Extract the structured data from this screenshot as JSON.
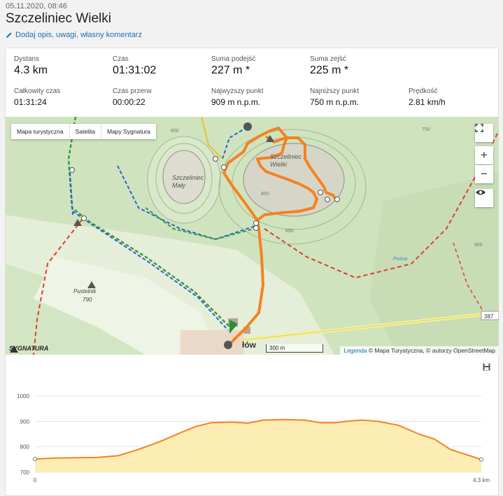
{
  "header": {
    "date": "05.11.2020, 08:46",
    "title": "Szczeliniec Wielki",
    "edit_link": "Dodaj opis, uwagi, własny komentarz"
  },
  "stats": [
    {
      "label": "Dystans",
      "value": "4.3 km",
      "size": "big"
    },
    {
      "label": "Czas",
      "value": "01:31:02",
      "size": "big"
    },
    {
      "label": "Suma podejść",
      "value": "227 m *",
      "size": "big"
    },
    {
      "label": "Suma zejść",
      "value": "225 m *",
      "size": "big"
    },
    {
      "label": "Całkowity czas",
      "value": "01:31:24",
      "size": "small"
    },
    {
      "label": "Czas przerw",
      "value": "00:00:22",
      "size": "small"
    },
    {
      "label": "Najwyższy punkt",
      "value": "909 m n.p.m.",
      "size": "small"
    },
    {
      "label": "Najniższy punkt",
      "value": "750 m n.p.m.",
      "size": "small"
    },
    {
      "label": "Prędkość",
      "value": "2.81 km/h",
      "size": "small"
    }
  ],
  "map": {
    "tabs": [
      "Mapa turystyczna",
      "Satelita",
      "Mapy Sygnatura"
    ],
    "active_tab": "Mapa turystyczna",
    "labels": {
      "szczeliniec_maly": "Szczeliniec\nMały",
      "szczeliniec_wielki": "Szczeliniec\nWielki",
      "pustelnik": "Pustelnik",
      "pustelnik_alt": "790",
      "contour_850a": "850",
      "contour_850b": "850",
      "contour_850c": "850",
      "contour_750": "750",
      "contour_800": "800",
      "village": "łów",
      "road_number": "387",
      "brook": "Pośna"
    },
    "scale_label": "300 m",
    "attribution_link": "Legenda",
    "attribution_text": "© Mapa Turystyczna, © autorzy OpenStreetMap",
    "brand": "SYGNATURA",
    "zoom_in": "+",
    "zoom_out": "−",
    "colors": {
      "track": "#f58220",
      "red_trail": "#d9412b",
      "green_trail": "#3a9a3a",
      "blue_trail": "#2a63c9",
      "yellow_trail": "#e7c331"
    }
  },
  "elevation": {
    "y_ticks": [
      "1000",
      "900",
      "800",
      "700"
    ],
    "x_ticks": [
      "0",
      "4.3 km"
    ],
    "ylim": [
      700,
      1000
    ],
    "xlim": [
      0,
      4.3
    ],
    "profile": [
      [
        0,
        752
      ],
      [
        0.2,
        756
      ],
      [
        0.4,
        757
      ],
      [
        0.6,
        758
      ],
      [
        0.8,
        765
      ],
      [
        1.0,
        790
      ],
      [
        1.2,
        820
      ],
      [
        1.4,
        855
      ],
      [
        1.55,
        880
      ],
      [
        1.7,
        895
      ],
      [
        1.9,
        897
      ],
      [
        2.05,
        893
      ],
      [
        2.2,
        905
      ],
      [
        2.4,
        907
      ],
      [
        2.6,
        905
      ],
      [
        2.75,
        895
      ],
      [
        2.9,
        895
      ],
      [
        3.0,
        900
      ],
      [
        3.15,
        905
      ],
      [
        3.3,
        900
      ],
      [
        3.5,
        885
      ],
      [
        3.7,
        850
      ],
      [
        3.85,
        830
      ],
      [
        4.0,
        790
      ],
      [
        4.15,
        770
      ],
      [
        4.3,
        750
      ]
    ]
  }
}
